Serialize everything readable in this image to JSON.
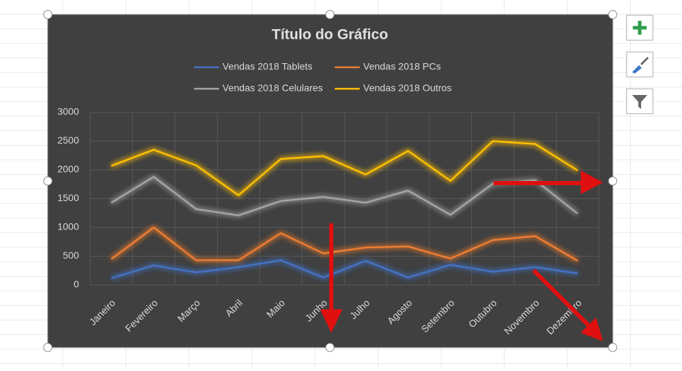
{
  "chart_data": {
    "type": "line",
    "title": "Título do Gráfico",
    "categories": [
      "Janeiro",
      "Fevereiro",
      "Março",
      "Abril",
      "Maio",
      "Junho",
      "Julho",
      "Agosto",
      "Setembro",
      "Outubro",
      "Novembro",
      "Dezembro"
    ],
    "series": [
      {
        "name": "Vendas 2018 Tablets",
        "color": "#4472c4",
        "values": [
          120,
          340,
          220,
          310,
          430,
          130,
          420,
          130,
          350,
          230,
          310,
          200
        ]
      },
      {
        "name": "Vendas 2018 PCs",
        "color": "#ed7d31",
        "values": [
          450,
          1000,
          430,
          430,
          900,
          550,
          650,
          670,
          460,
          780,
          850,
          420
        ]
      },
      {
        "name": "Vendas 2018 Celulares",
        "color": "#a5a5a5",
        "values": [
          1430,
          1880,
          1320,
          1210,
          1460,
          1530,
          1430,
          1640,
          1220,
          1760,
          1820,
          1240
        ]
      },
      {
        "name": "Vendas 2018 Outros",
        "color": "#ffc000",
        "values": [
          2070,
          2350,
          2080,
          1560,
          2190,
          2240,
          1920,
          2330,
          1810,
          2500,
          2450,
          1990
        ]
      }
    ],
    "ylim": [
      0,
      3000
    ],
    "yticks": [
      0,
      500,
      1000,
      1500,
      2000,
      2500,
      3000
    ],
    "grid": true,
    "legend": "top"
  }
}
